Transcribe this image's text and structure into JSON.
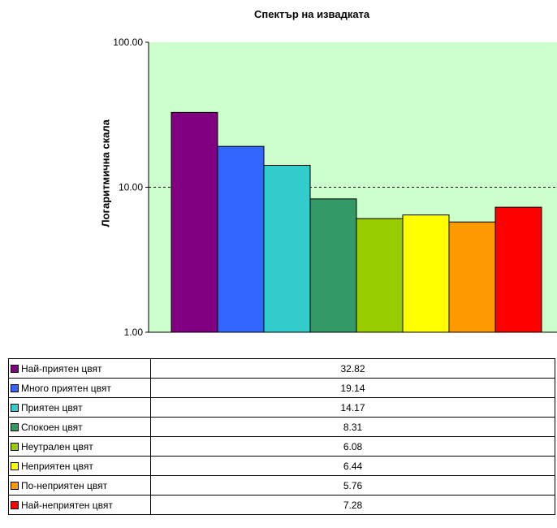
{
  "chart_data": {
    "type": "bar",
    "title": "Спектър на извадката",
    "ylabel": "Логаритмична скала",
    "xlabel": "",
    "yscale": "log",
    "ylim": [
      1,
      100
    ],
    "yticks": [
      "1.00",
      "10.00",
      "100.00"
    ],
    "gridline": "dashed at 10",
    "plot_background": "#ccffcc",
    "series": [
      {
        "name": "Най-приятен цвят",
        "value": 32.82,
        "value_label": "32.82",
        "color": "#800080"
      },
      {
        "name": "Много приятен цвят",
        "value": 19.14,
        "value_label": "19.14",
        "color": "#3366ff"
      },
      {
        "name": "Приятен цвят",
        "value": 14.17,
        "value_label": "14.17",
        "color": "#33cccc"
      },
      {
        "name": "Спокоен цвят",
        "value": 8.31,
        "value_label": "8.31",
        "color": "#339966"
      },
      {
        "name": "Неутрален цвят",
        "value": 6.08,
        "value_label": "6.08",
        "color": "#99cc00"
      },
      {
        "name": "Неприятен цвят",
        "value": 6.44,
        "value_label": "6.44",
        "color": "#ffff00"
      },
      {
        "name": "По-неприятен цвят",
        "value": 5.76,
        "value_label": "5.76",
        "color": "#ff9900"
      },
      {
        "name": "Най-неприятен цвят",
        "value": 7.28,
        "value_label": "7.28",
        "color": "#ff0000"
      }
    ]
  }
}
